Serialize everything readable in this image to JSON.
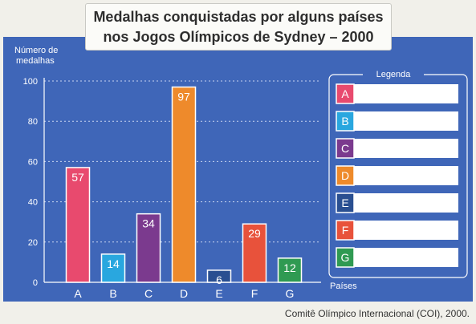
{
  "title_line1": "Medalhas conquistadas por alguns países",
  "title_line2": "nos Jogos Olímpicos de Sydney – 2000",
  "source": "Comitê Olímpico Internacional (COI), 2000.",
  "legend": {
    "title": "Legenda",
    "items": [
      {
        "key": "A",
        "color": "#e84a6e"
      },
      {
        "key": "B",
        "color": "#29a7df"
      },
      {
        "key": "C",
        "color": "#7b3a8e"
      },
      {
        "key": "D",
        "color": "#ee8a2b"
      },
      {
        "key": "E",
        "color": "#2a4f91"
      },
      {
        "key": "F",
        "color": "#e8523b"
      },
      {
        "key": "G",
        "color": "#2f9a52"
      }
    ]
  },
  "chart_data": {
    "type": "bar",
    "ylabel_line1": "Número de",
    "ylabel_line2": "medalhas",
    "xlabel": "Países",
    "categories": [
      "A",
      "B",
      "C",
      "D",
      "E",
      "F",
      "G"
    ],
    "values": [
      57,
      14,
      34,
      97,
      6,
      29,
      12
    ],
    "colors": [
      "#e84a6e",
      "#29a7df",
      "#7b3a8e",
      "#ee8a2b",
      "#2a4f91",
      "#e8523b",
      "#2f9a52"
    ],
    "ylim": [
      0,
      100
    ],
    "yticks": [
      0,
      20,
      40,
      60,
      80,
      100
    ],
    "grid": true
  }
}
